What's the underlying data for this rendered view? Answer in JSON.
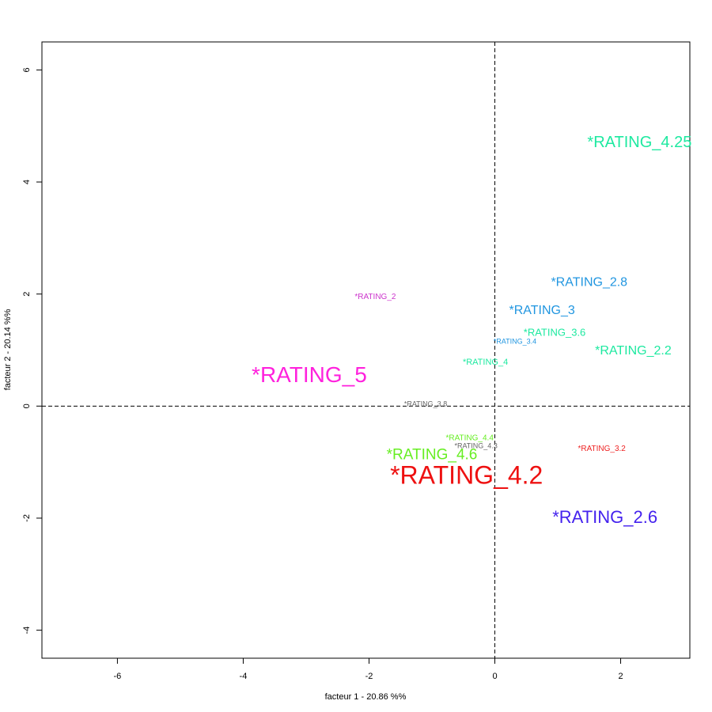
{
  "chart_data": {
    "type": "scatter",
    "title": "",
    "xlabel": "facteur  1  - 20.86 %%",
    "ylabel": "facteur  2  - 20.14 %%",
    "xlim": [
      -7.2,
      3.1
    ],
    "ylim": [
      -4.5,
      6.5
    ],
    "x_ticks": [
      -6,
      -4,
      -2,
      0,
      2
    ],
    "y_ticks": [
      -4,
      -2,
      0,
      2,
      4,
      6
    ],
    "x_tick_labels": [
      "-6",
      "-4",
      "-2",
      "0",
      "2"
    ],
    "y_tick_labels": [
      "-4",
      "-2",
      "0",
      "2",
      "4",
      "6"
    ],
    "reference_lines": {
      "x": 0,
      "y": 0,
      "style": "dashed"
    },
    "grid": false,
    "legend": "none",
    "points": [
      {
        "label": "*RATING_4.25",
        "x": 2.3,
        "y": 4.7,
        "size": 20,
        "color": "#1de9a0"
      },
      {
        "label": "*RATING_2.8",
        "x": 1.5,
        "y": 2.2,
        "size": 16,
        "color": "#2196e0"
      },
      {
        "label": "*RATING_2",
        "x": -1.9,
        "y": 1.95,
        "size": 10,
        "color": "#cc33cc"
      },
      {
        "label": "*RATING_3",
        "x": 0.75,
        "y": 1.7,
        "size": 16,
        "color": "#2196e0"
      },
      {
        "label": "*RATING_3.6",
        "x": 0.95,
        "y": 1.3,
        "size": 13,
        "color": "#1de9a0"
      },
      {
        "label": "*RATING_3.4",
        "x": 0.32,
        "y": 1.15,
        "size": 9,
        "color": "#2196e0"
      },
      {
        "label": "*RATING_2.2",
        "x": 2.2,
        "y": 0.98,
        "size": 16,
        "color": "#1de9a0"
      },
      {
        "label": "*RATING_4",
        "x": -0.15,
        "y": 0.78,
        "size": 11,
        "color": "#1de9a0"
      },
      {
        "label": "*RATING_5",
        "x": -2.95,
        "y": 0.53,
        "size": 28,
        "color": "#ff22dd"
      },
      {
        "label": "*RATING_3.8",
        "x": -1.1,
        "y": 0.03,
        "size": 9,
        "color": "#666666"
      },
      {
        "label": "*RATING_4.4",
        "x": -0.4,
        "y": -0.57,
        "size": 10,
        "color": "#66ee22"
      },
      {
        "label": "*RATING_4.3",
        "x": -0.3,
        "y": -0.72,
        "size": 9,
        "color": "#666666"
      },
      {
        "label": "*RATING_3.2",
        "x": 1.7,
        "y": -0.76,
        "size": 10,
        "color": "#ee2222"
      },
      {
        "label": "*RATING_4.6",
        "x": -1.0,
        "y": -0.88,
        "size": 19,
        "color": "#66ee22"
      },
      {
        "label": "*RATING_4.2",
        "x": -0.45,
        "y": -1.27,
        "size": 32,
        "color": "#ee1111"
      },
      {
        "label": "*RATING_2.6",
        "x": 1.75,
        "y": -2.0,
        "size": 22,
        "color": "#4422ee"
      }
    ]
  }
}
